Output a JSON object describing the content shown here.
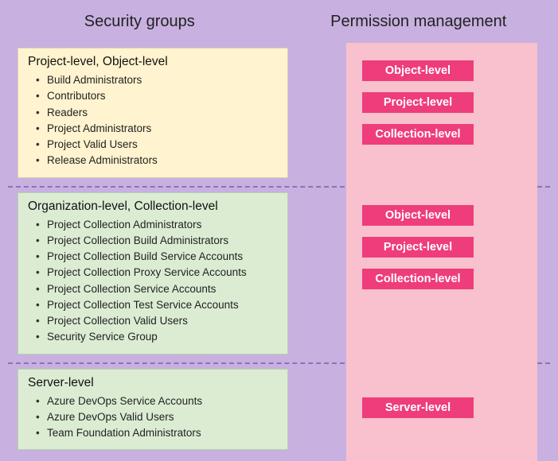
{
  "colors": {
    "page_bg": "#c8b0e0",
    "right_panel_bg": "#f9c0cd",
    "card_yellow_bg": "#fff4cf",
    "card_green_bg": "#dcecd3",
    "perm_btn_bg": "#ee3d7a",
    "perm_btn_text": "#ffffff",
    "divider": "#8e6fb9"
  },
  "headers": {
    "left": "Security groups",
    "right": "Permission management"
  },
  "sections": [
    {
      "card_style": "yellow",
      "title": "Project-level, Object-level",
      "items": [
        "Build Administrators",
        "Contributors",
        "Readers",
        "Project Administrators",
        "Project Valid Users",
        "Release Administrators"
      ],
      "permissions": [
        "Object-level",
        "Project-level",
        "Collection-level"
      ]
    },
    {
      "card_style": "green",
      "title": "Organization-level, Collection-level",
      "items": [
        "Project Collection Administrators",
        "Project Collection Build Administrators",
        "Project Collection Build Service Accounts",
        "Project Collection Proxy Service Accounts",
        "Project Collection Service Accounts",
        "Project Collection Test Service Accounts",
        "Project Collection Valid Users",
        "Security Service Group"
      ],
      "permissions": [
        "Object-level",
        "Project-level",
        "Collection-level"
      ]
    },
    {
      "card_style": "green",
      "title": "Server-level",
      "items": [
        "Azure DevOps Service Accounts",
        "Azure DevOps Valid Users",
        "Team Foundation Administrators"
      ],
      "permissions": [
        "Server-level"
      ]
    }
  ]
}
